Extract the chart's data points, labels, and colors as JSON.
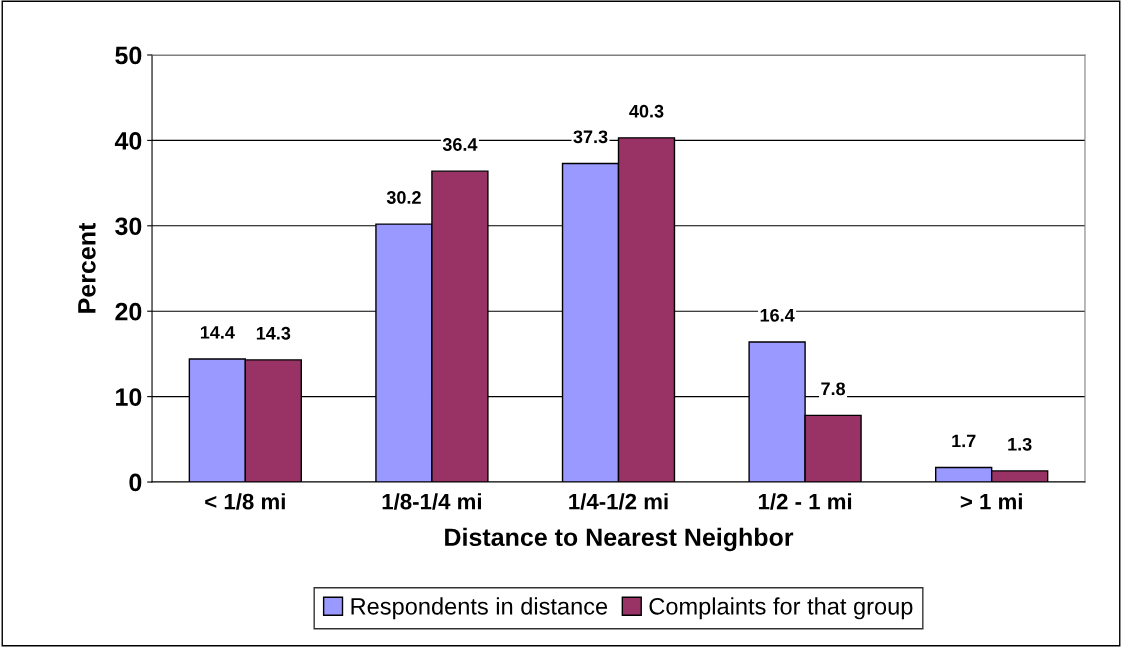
{
  "chart_data": {
    "type": "bar",
    "xlabel": "Distance to Nearest Neighbor",
    "ylabel": "Percent",
    "categories": [
      "< 1/8 mi",
      "1/8-1/4 mi",
      "1/4-1/2 mi",
      "1/2 - 1 mi",
      "> 1 mi"
    ],
    "series": [
      {
        "name": "Respondents in distance",
        "color": "#9999ff",
        "values": [
          14.4,
          30.2,
          37.3,
          16.4,
          1.7
        ]
      },
      {
        "name": "Complaints for that group",
        "color": "#993366",
        "values": [
          14.3,
          36.4,
          40.3,
          7.8,
          1.3
        ]
      }
    ],
    "ylim": [
      0,
      50
    ],
    "yticks": [
      0,
      10,
      20,
      30,
      40,
      50
    ],
    "grid": "y",
    "legend": "bottom",
    "data_labels": true
  }
}
